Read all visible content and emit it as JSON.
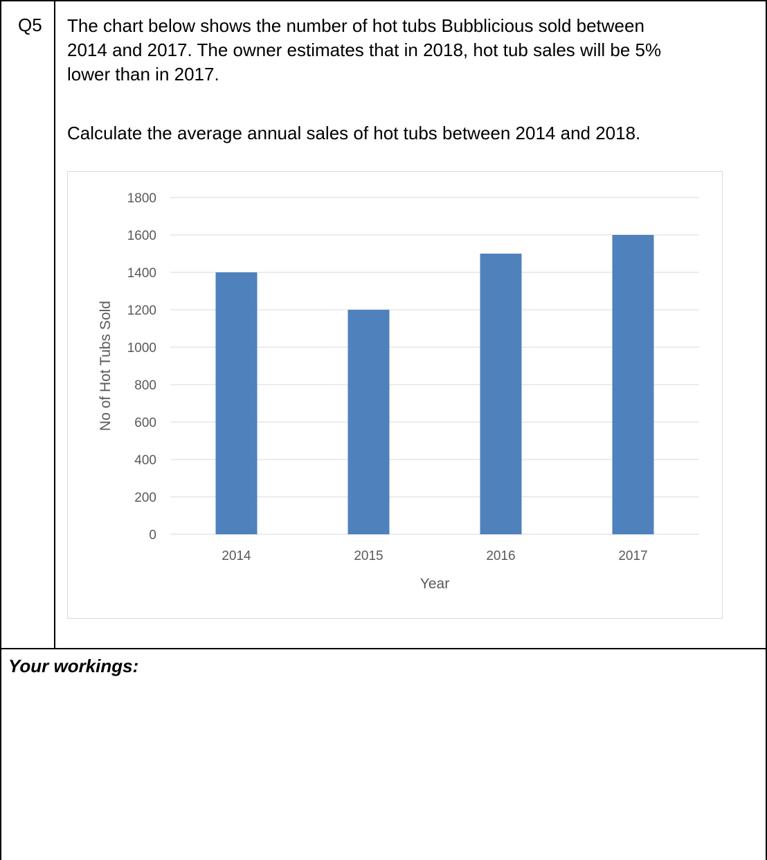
{
  "question": {
    "number": "Q5",
    "text": "The chart below shows the number of hot tubs Bubblicious sold between\n2014 and 2017. The owner estimates that in 2018, hot tub sales will be 5%\nlower than in 2017.",
    "task": "Calculate the average annual sales of hot tubs between 2014 and 2018."
  },
  "workings_label": "Your workings:",
  "colors": {
    "bar": "#4F81BD",
    "gridline": "#d9d9d9",
    "axis_text": "#595959"
  },
  "chart_data": {
    "type": "bar",
    "categories": [
      "2014",
      "2015",
      "2016",
      "2017"
    ],
    "values": [
      1400,
      1200,
      1500,
      1600
    ],
    "title": "",
    "xlabel": "Year",
    "ylabel": "No of Hot Tubs Sold",
    "ylim": [
      0,
      1800
    ],
    "yticks": [
      0,
      200,
      400,
      600,
      800,
      1000,
      1200,
      1400,
      1600,
      1800
    ],
    "grid": true,
    "legend": "none"
  }
}
